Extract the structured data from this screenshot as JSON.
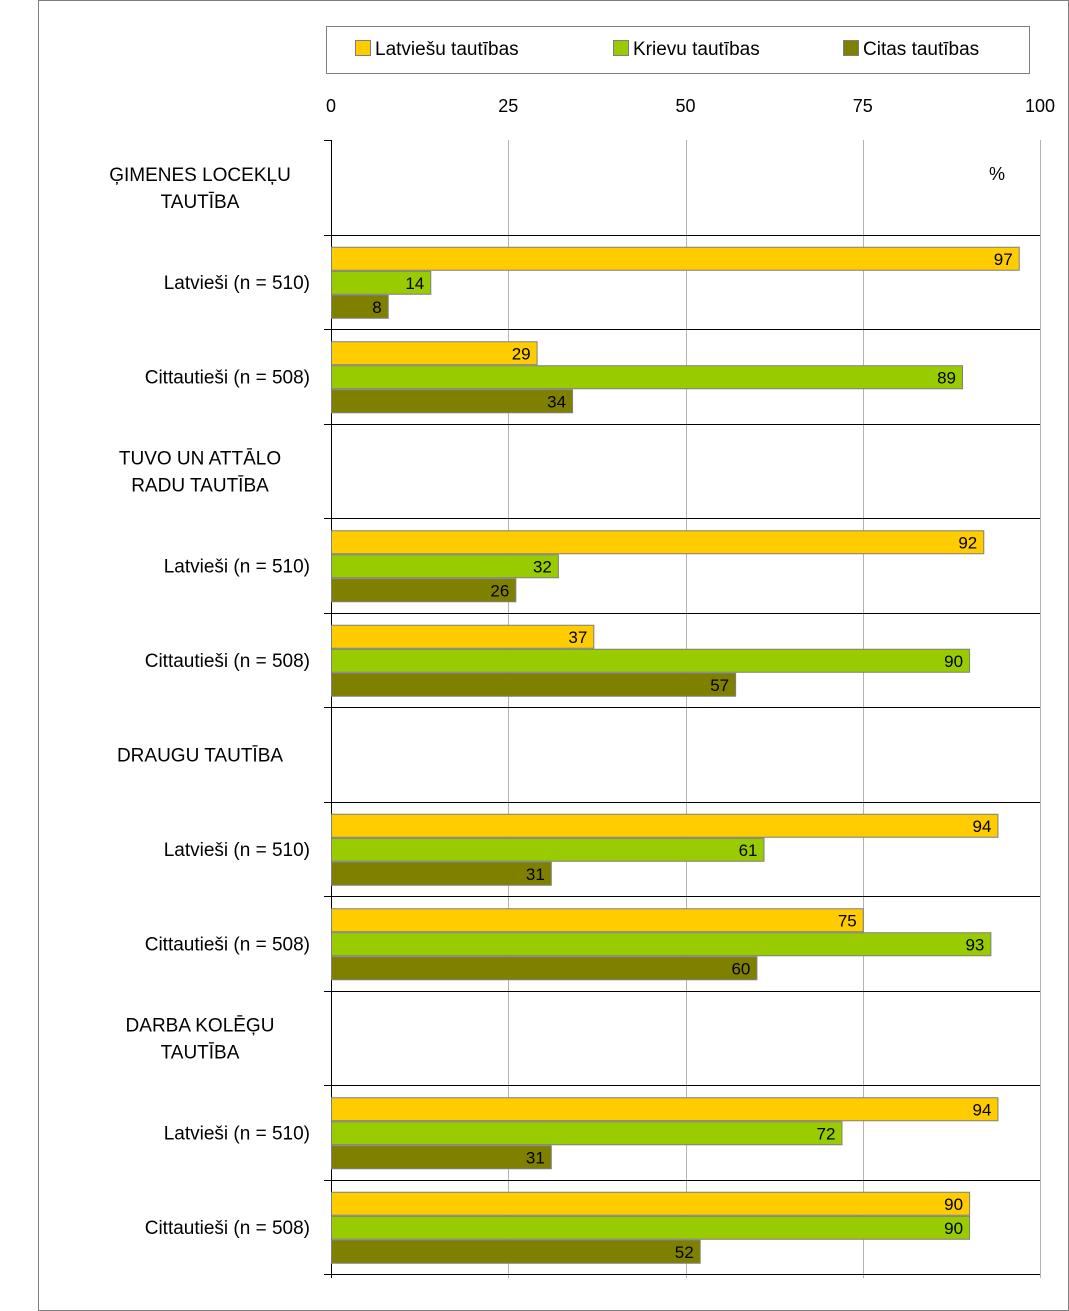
{
  "chart_data": {
    "type": "bar",
    "orientation": "horizontal",
    "unit_label": "%",
    "xlim": [
      0,
      100
    ],
    "x_ticks": [
      0,
      25,
      50,
      75,
      100
    ],
    "grid": true,
    "legend_position": "top",
    "series": [
      {
        "name": "Latviešu tautības",
        "color": "#ffcc00"
      },
      {
        "name": "Krievu tautības",
        "color": "#99cc00"
      },
      {
        "name": "Citas tautības",
        "color": "#808000"
      }
    ],
    "rows": [
      {
        "type": "header",
        "label_lines": [
          "ĢIMENES LOCEKĻU",
          "TAUTĪBA"
        ]
      },
      {
        "type": "group",
        "label": "Latvieši (n = 510)",
        "values": [
          97,
          14,
          8
        ]
      },
      {
        "type": "group",
        "label": "Cittautieši (n = 508)",
        "values": [
          29,
          89,
          34
        ]
      },
      {
        "type": "header",
        "label_lines": [
          "TUVO UN ATTĀLO",
          "RADU TAUTĪBA"
        ]
      },
      {
        "type": "group",
        "label": "Latvieši (n = 510)",
        "values": [
          92,
          32,
          26
        ]
      },
      {
        "type": "group",
        "label": "Cittautieši (n = 508)",
        "values": [
          37,
          90,
          57
        ]
      },
      {
        "type": "header",
        "label_lines": [
          "DRAUGU TAUTĪBA"
        ]
      },
      {
        "type": "group",
        "label": "Latvieši (n = 510)",
        "values": [
          94,
          61,
          31
        ]
      },
      {
        "type": "group",
        "label": "Cittautieši (n = 508)",
        "values": [
          75,
          93,
          60
        ]
      },
      {
        "type": "header",
        "label_lines": [
          "DARBA KOLĒĢU",
          "TAUTĪBA"
        ]
      },
      {
        "type": "group",
        "label": "Latvieši (n = 510)",
        "values": [
          94,
          72,
          31
        ]
      },
      {
        "type": "group",
        "label": "Cittautieši (n = 508)",
        "values": [
          90,
          90,
          52
        ]
      }
    ]
  }
}
